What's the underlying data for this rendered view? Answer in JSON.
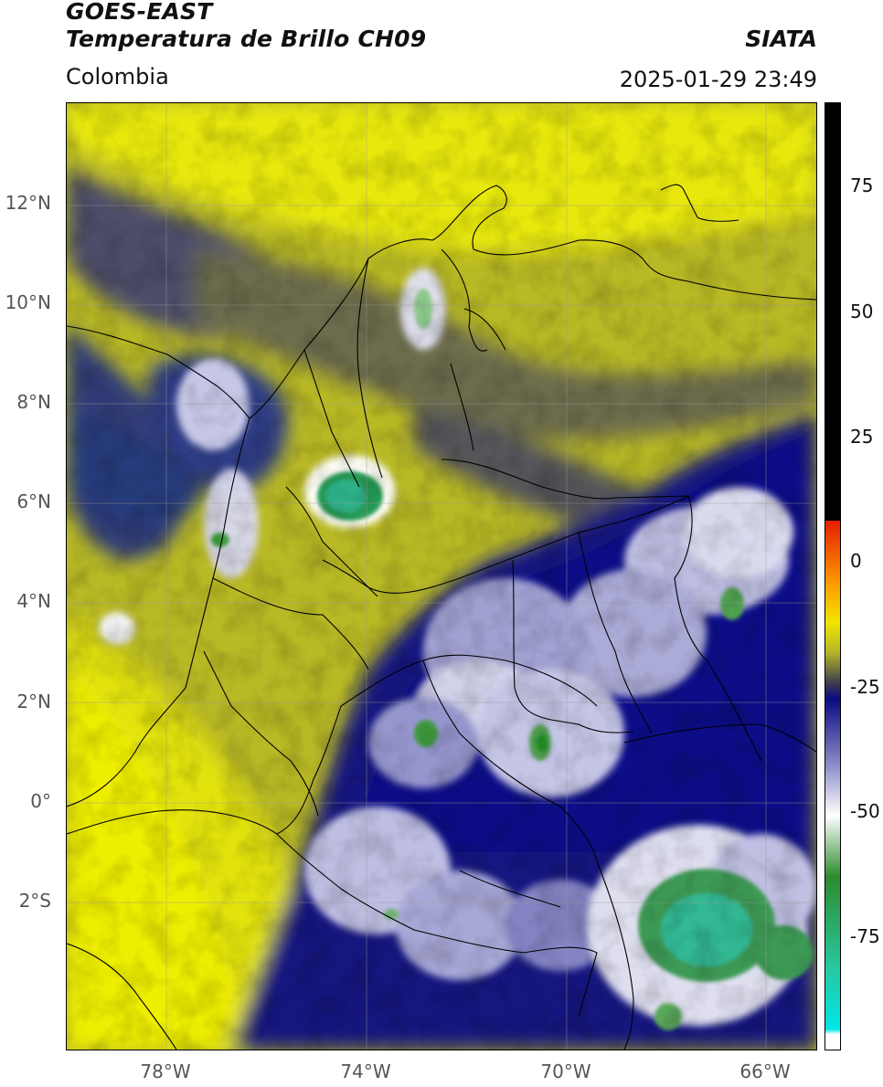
{
  "header": {
    "title_line1": "GOES-EAST",
    "title_line2": "Temperatura de Brillo CH09",
    "brand": "SIATA",
    "region": "Colombia",
    "timestamp": "2025-01-29 23:49"
  },
  "axes": {
    "lon_labels": [
      "78°W",
      "74°W",
      "70°W",
      "66°W"
    ],
    "lat_labels": [
      "12°N",
      "10°N",
      "8°N",
      "6°N",
      "4°N",
      "2°N",
      "0°",
      "2°S"
    ],
    "lon_range": [
      -80,
      -65
    ],
    "lat_range": [
      -4.7,
      14.3
    ]
  },
  "colorbar": {
    "labels": [
      "75",
      "50",
      "25",
      "0",
      "-25",
      "-50",
      "-75"
    ],
    "range": [
      -96,
      90
    ],
    "stops": [
      {
        "v": 90,
        "c": "#000000"
      },
      {
        "v": 8,
        "c": "#000000"
      },
      {
        "v": 7.9,
        "c": "#e61e00"
      },
      {
        "v": -5,
        "c": "#ffa000"
      },
      {
        "v": -12,
        "c": "#f0e600"
      },
      {
        "v": -18,
        "c": "#b4b428"
      },
      {
        "v": -24,
        "c": "#3c3c50"
      },
      {
        "v": -27,
        "c": "#0a0a82"
      },
      {
        "v": -40,
        "c": "#8c8cc8"
      },
      {
        "v": -50,
        "c": "#ffffff"
      },
      {
        "v": -62,
        "c": "#2d8c2d"
      },
      {
        "v": -80,
        "c": "#28c8a0"
      },
      {
        "v": -92,
        "c": "#00e6e6"
      },
      {
        "v": -93,
        "c": "#ffffff"
      },
      {
        "v": -96,
        "c": "#ffffff"
      }
    ]
  }
}
